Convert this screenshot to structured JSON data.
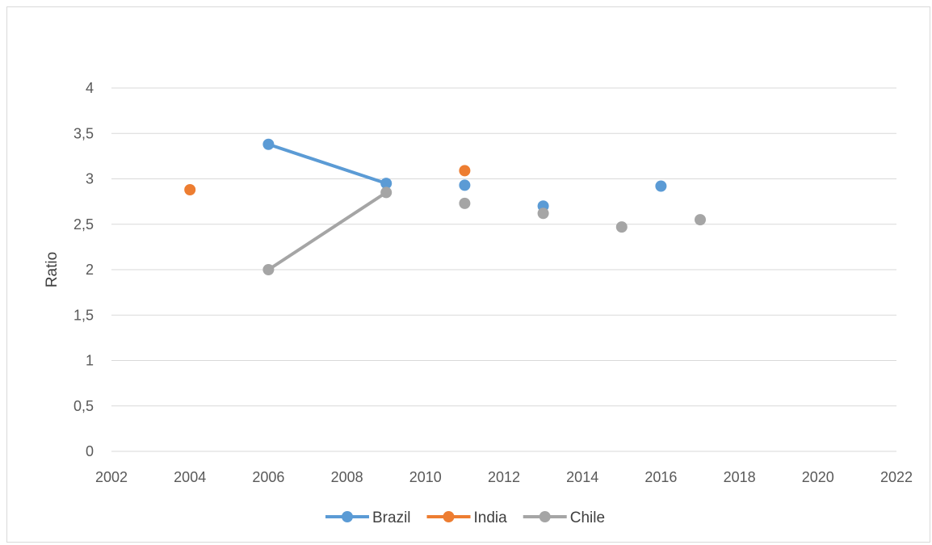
{
  "chart_data": {
    "type": "scatter",
    "title": "",
    "xlabel": "",
    "ylabel": "Ratio",
    "xlim": [
      2002,
      2022
    ],
    "ylim": [
      0,
      4
    ],
    "x_ticks": [
      2002,
      2004,
      2006,
      2008,
      2010,
      2012,
      2014,
      2016,
      2018,
      2020,
      2022
    ],
    "y_ticks": [
      "0",
      "0,5",
      "1",
      "1,5",
      "2",
      "2,5",
      "3",
      "3,5",
      "4"
    ],
    "y_tick_values": [
      0,
      0.5,
      1,
      1.5,
      2,
      2.5,
      3,
      3.5,
      4
    ],
    "grid": true,
    "legend_position": "bottom",
    "series": [
      {
        "name": "Brazil",
        "color": "#5b9bd5",
        "points": [
          {
            "x": 2006,
            "y": 3.38
          },
          {
            "x": 2009,
            "y": 2.95
          },
          {
            "x": 2011,
            "y": 2.93
          },
          {
            "x": 2013,
            "y": 2.7
          },
          {
            "x": 2016,
            "y": 2.92
          }
        ],
        "line_segments": [
          [
            0,
            1
          ]
        ]
      },
      {
        "name": "India",
        "color": "#ed7d31",
        "points": [
          {
            "x": 2004,
            "y": 2.88
          },
          {
            "x": 2011,
            "y": 3.09
          }
        ],
        "line_segments": []
      },
      {
        "name": "Chile",
        "color": "#a5a5a5",
        "points": [
          {
            "x": 2006,
            "y": 2.0
          },
          {
            "x": 2009,
            "y": 2.85
          },
          {
            "x": 2011,
            "y": 2.73
          },
          {
            "x": 2013,
            "y": 2.62
          },
          {
            "x": 2015,
            "y": 2.47
          },
          {
            "x": 2017,
            "y": 2.55
          }
        ],
        "line_segments": [
          [
            0,
            1
          ]
        ]
      }
    ]
  }
}
